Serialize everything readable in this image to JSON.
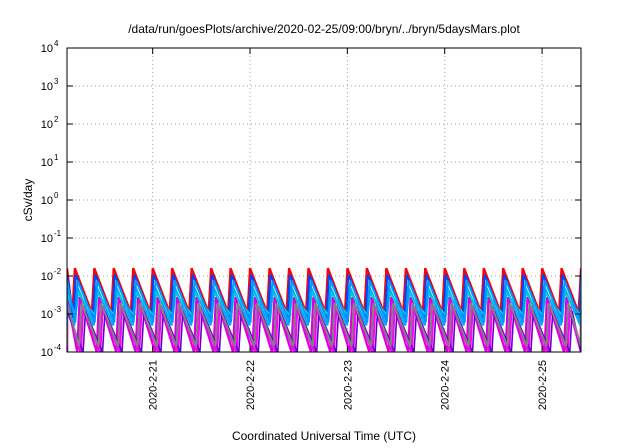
{
  "chart_data": {
    "type": "line",
    "title": "/data/run/goesPlots/archive/2020-02-25/09:00/bryn/../bryn/5daysMars.plot",
    "xlabel": "Coordinated Universal Time (UTC)",
    "ylabel": "cSv/day",
    "yscale": "log",
    "ylim": [
      0.0001,
      10000
    ],
    "xlim": [
      0.12,
      5.4
    ],
    "x_unit_note": "days after 2020-02-20 00:00 UTC",
    "y_ticks": [
      {
        "base": "10",
        "exp": "-4"
      },
      {
        "base": "10",
        "exp": "-3"
      },
      {
        "base": "10",
        "exp": "-2"
      },
      {
        "base": "10",
        "exp": "-1"
      },
      {
        "base": "10",
        "exp": "0"
      },
      {
        "base": "10",
        "exp": "1"
      },
      {
        "base": "10",
        "exp": "2"
      },
      {
        "base": "10",
        "exp": "3"
      },
      {
        "base": "10",
        "exp": "4"
      }
    ],
    "x_ticks": [
      {
        "label": "2020-2-21",
        "day": 1
      },
      {
        "label": "2020-2-22",
        "day": 2
      },
      {
        "label": "2020-2-23",
        "day": 3
      },
      {
        "label": "2020-2-24",
        "day": 4
      },
      {
        "label": "2020-2-25",
        "day": 5
      }
    ],
    "grid": true,
    "oscillation_period_days": 0.2,
    "series": [
      {
        "color": "#ff0000",
        "width": 2.2,
        "peak": 0.016,
        "trough": 0.0011,
        "phase": 0.0
      },
      {
        "color": "#dd00dd",
        "width": 2.2,
        "peak": 0.0028,
        "trough": 0.0001,
        "phase": 0.05
      },
      {
        "color": "#ff00ff",
        "width": 2.6,
        "peak": 0.0016,
        "trough": 0.0001,
        "phase": 0.085
      },
      {
        "color": "#6600cc",
        "width": 1.6,
        "peak": 0.0012,
        "trough": 0.0001,
        "phase": 0.11
      },
      {
        "color": "#00aaff",
        "width": 2.2,
        "peak": 0.0055,
        "trough": 0.0005,
        "phase": 0.02
      },
      {
        "color": "#0044ff",
        "width": 2.0,
        "peak": 0.011,
        "trough": 0.0008,
        "phase": 0.01
      },
      {
        "color": "#00d0d0",
        "width": 1.8,
        "peak": 0.0035,
        "trough": 0.0009,
        "phase": 0.035
      },
      {
        "color": "#808080",
        "width": 2.0,
        "peak": 0.0019,
        "trough": 0.00014,
        "phase": 0.07
      },
      {
        "color": "#0099ff",
        "width": 2.0,
        "peak": 0.0075,
        "trough": 0.0006,
        "phase": 0.03
      }
    ]
  }
}
